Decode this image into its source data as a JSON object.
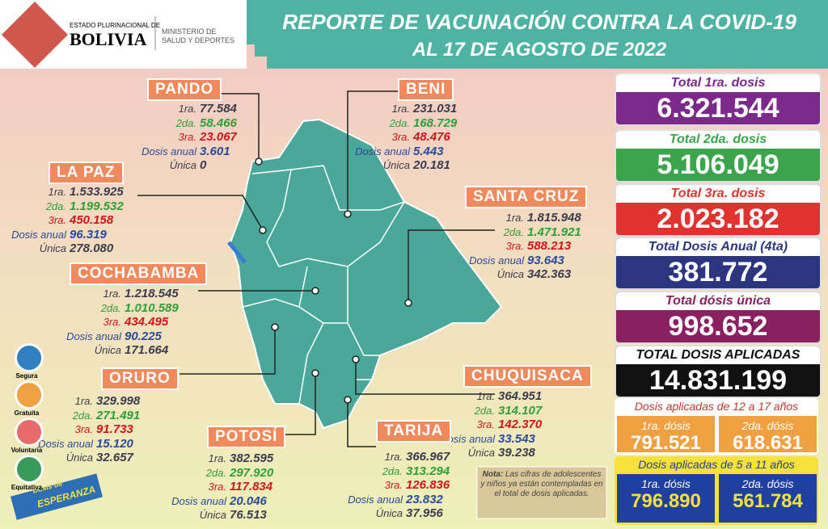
{
  "header": {
    "logo_line1": "ESTADO PLURINACIONAL DE",
    "logo_line2": "BOLIVIA",
    "ministry_line1": "MINISTERIO DE",
    "ministry_line2": "SALUD Y DEPORTES",
    "title": "REPORTE DE VACUNACIÓN CONTRA LA COVID-19",
    "subtitle": "AL 17 DE AGOSTO DE 2022"
  },
  "departments": [
    {
      "name": "PANDO",
      "rows": [
        {
          "label": "1ra.",
          "value": "77.584"
        },
        {
          "label": "2da.",
          "value": "58.466"
        },
        {
          "label": "3ra.",
          "value": "23.067"
        },
        {
          "label": "Dosis anual",
          "value": "3.601"
        },
        {
          "label": "Única",
          "value": "0"
        }
      ]
    },
    {
      "name": "BENI",
      "rows": [
        {
          "label": "1ra.",
          "value": "231.031"
        },
        {
          "label": "2da.",
          "value": "168.729"
        },
        {
          "label": "3ra.",
          "value": "48.476"
        },
        {
          "label": "Dosis anual",
          "value": "5.443"
        },
        {
          "label": "Única",
          "value": "20.181"
        }
      ]
    },
    {
      "name": "LA PAZ",
      "rows": [
        {
          "label": "1ra.",
          "value": "1.533.925"
        },
        {
          "label": "2da.",
          "value": "1.199.532"
        },
        {
          "label": "3ra.",
          "value": "450.158"
        },
        {
          "label": "Dosis anual",
          "value": "96.319"
        },
        {
          "label": "Única",
          "value": "278.080"
        }
      ]
    },
    {
      "name": "SANTA CRUZ",
      "rows": [
        {
          "label": "1ra.",
          "value": "1.815.948"
        },
        {
          "label": "2da.",
          "value": "1.471.921"
        },
        {
          "label": "3ra.",
          "value": "588.213"
        },
        {
          "label": "Dosis anual",
          "value": "93.643"
        },
        {
          "label": "Única",
          "value": "342.363"
        }
      ]
    },
    {
      "name": "COCHABAMBA",
      "rows": [
        {
          "label": "1ra.",
          "value": "1.218.545"
        },
        {
          "label": "2da.",
          "value": "1.010.589"
        },
        {
          "label": "3ra.",
          "value": "434.495"
        },
        {
          "label": "Dosis anual",
          "value": "90.225"
        },
        {
          "label": "Única",
          "value": "171.664"
        }
      ]
    },
    {
      "name": "ORURO",
      "rows": [
        {
          "label": "1ra.",
          "value": "329.998"
        },
        {
          "label": "2da.",
          "value": "271.491"
        },
        {
          "label": "3ra.",
          "value": "91.733"
        },
        {
          "label": "Dosis anual",
          "value": "15.120"
        },
        {
          "label": "Única",
          "value": "32.657"
        }
      ]
    },
    {
      "name": "CHUQUISACA",
      "rows": [
        {
          "label": "1ra.",
          "value": "364.951"
        },
        {
          "label": "2da.",
          "value": "314.107"
        },
        {
          "label": "3ra.",
          "value": "142.370"
        },
        {
          "label": "Dosis anual",
          "value": "33.543"
        },
        {
          "label": "Única",
          "value": "39.238"
        }
      ]
    },
    {
      "name": "POTOSÍ",
      "rows": [
        {
          "label": "1ra.",
          "value": "382.595"
        },
        {
          "label": "2da.",
          "value": "297.920"
        },
        {
          "label": "3ra.",
          "value": "117.834"
        },
        {
          "label": "Dosis anual",
          "value": "20.046"
        },
        {
          "label": "Única",
          "value": "76.513"
        }
      ]
    },
    {
      "name": "TARIJA",
      "rows": [
        {
          "label": "1ra.",
          "value": "366.967"
        },
        {
          "label": "2da.",
          "value": "313.294"
        },
        {
          "label": "3ra.",
          "value": "126.836"
        },
        {
          "label": "Dosis anual",
          "value": "23.832"
        },
        {
          "label": "Única",
          "value": "37.956"
        }
      ]
    }
  ],
  "totals": [
    {
      "label": "Total 1ra. dosis",
      "value": "6.321.544"
    },
    {
      "label": "Total 2da. dosis",
      "value": "5.106.049"
    },
    {
      "label": "Total 3ra. dosis",
      "value": "2.023.182"
    },
    {
      "label": "Total Dosis Anual (4ta)",
      "value": "381.772"
    },
    {
      "label": "Total dósis única",
      "value": "998.652"
    },
    {
      "label": "TOTAL DOSIS APLICADAS",
      "value": "14.831.199"
    }
  ],
  "groups": [
    {
      "title": "Dosis aplicadas de 12 a 17 años",
      "items": [
        {
          "label": "1ra. dósis",
          "value": "791.521"
        },
        {
          "label": "2da. dósis",
          "value": "618.631"
        }
      ]
    },
    {
      "title": "Dosis aplicadas de 5 a 11 años",
      "items": [
        {
          "label": "1ra. dósis",
          "value": "796.890"
        },
        {
          "label": "2da. dósis",
          "value": "561.784"
        }
      ]
    }
  ],
  "note": {
    "heading": "Nota:",
    "text": "Las cifras de adolescentes y niños ya están contempladas en el total de dosis aplicadas."
  },
  "icons": [
    "Segura",
    "Gratuita",
    "Voluntaria",
    "Equitativa"
  ],
  "badge": {
    "line1": "Dosis de",
    "line2": "ESPERANZA"
  }
}
